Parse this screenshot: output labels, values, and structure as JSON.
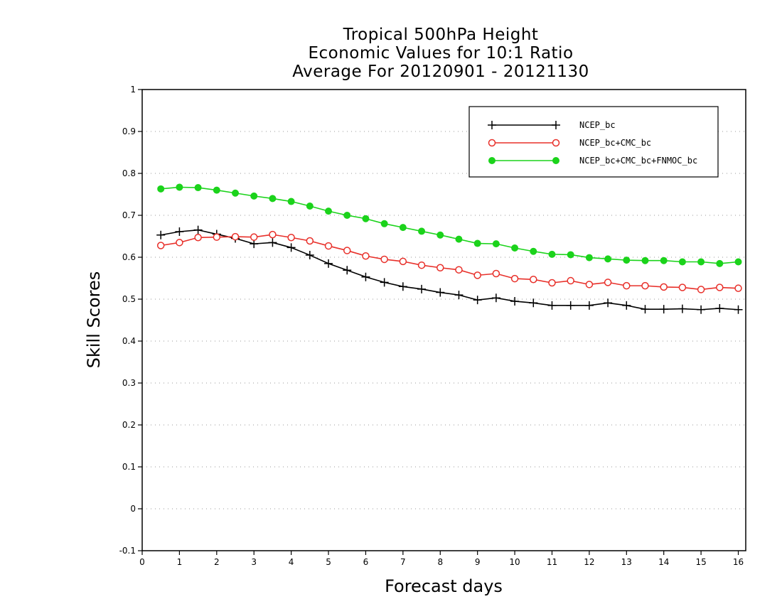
{
  "chart_data": {
    "type": "line",
    "title": [
      "Tropical 500hPa Height",
      "Economic Values for 10:1 Ratio",
      "Average For 20120901 - 20121130"
    ],
    "xlabel": "Forecast days",
    "ylabel": "Skill Scores",
    "xlim": [
      0,
      16.2
    ],
    "ylim": [
      -0.1,
      1
    ],
    "xticks": [
      0,
      1,
      2,
      3,
      4,
      5,
      6,
      7,
      8,
      9,
      10,
      11,
      12,
      13,
      14,
      15,
      16
    ],
    "yticks": [
      -0.1,
      0,
      0.1,
      0.2,
      0.3,
      0.4,
      0.5,
      0.6,
      0.7,
      0.8,
      0.9,
      1
    ],
    "ytick_labels": [
      "-0.1",
      "0",
      "0.1",
      "0.2",
      "0.3",
      "0.4",
      "0.5",
      "0.6",
      "0.7",
      "0.8",
      "0.9",
      "1"
    ],
    "grid": "horizontal dotted",
    "legend_position": "top-right",
    "x": [
      0.5,
      1,
      1.5,
      2,
      2.5,
      3,
      3.5,
      4,
      4.5,
      5,
      5.5,
      6,
      6.5,
      7,
      7.5,
      8,
      8.5,
      9,
      9.5,
      10,
      10.5,
      11,
      11.5,
      12,
      12.5,
      13,
      13.5,
      14,
      14.5,
      15,
      15.5,
      16
    ],
    "series": [
      {
        "name": "NCEP_bc",
        "color": "#000000",
        "marker": "plus",
        "values": [
          0.653,
          0.661,
          0.665,
          0.655,
          0.645,
          0.632,
          0.635,
          0.623,
          0.605,
          0.585,
          0.569,
          0.553,
          0.54,
          0.53,
          0.524,
          0.516,
          0.51,
          0.498,
          0.503,
          0.495,
          0.491,
          0.485,
          0.485,
          0.485,
          0.491,
          0.485,
          0.476,
          0.476,
          0.477,
          0.475,
          0.478,
          0.475
        ]
      },
      {
        "name": "NCEP_bc+CMC_bc",
        "color": "#e8302a",
        "marker": "open-circle",
        "values": [
          0.628,
          0.635,
          0.647,
          0.648,
          0.649,
          0.648,
          0.654,
          0.647,
          0.639,
          0.627,
          0.616,
          0.603,
          0.595,
          0.59,
          0.581,
          0.575,
          0.57,
          0.557,
          0.561,
          0.549,
          0.547,
          0.539,
          0.544,
          0.535,
          0.54,
          0.532,
          0.532,
          0.529,
          0.528,
          0.523,
          0.528,
          0.526
        ]
      },
      {
        "name": "NCEP_bc+CMC_bc+FNMOC_bc",
        "color": "#1bd31b",
        "marker": "filled-circle",
        "values": [
          0.763,
          0.767,
          0.766,
          0.76,
          0.753,
          0.746,
          0.74,
          0.733,
          0.722,
          0.71,
          0.7,
          0.692,
          0.68,
          0.671,
          0.662,
          0.653,
          0.643,
          0.633,
          0.632,
          0.622,
          0.614,
          0.607,
          0.606,
          0.599,
          0.596,
          0.593,
          0.592,
          0.592,
          0.589,
          0.589,
          0.585,
          0.589
        ]
      }
    ]
  }
}
